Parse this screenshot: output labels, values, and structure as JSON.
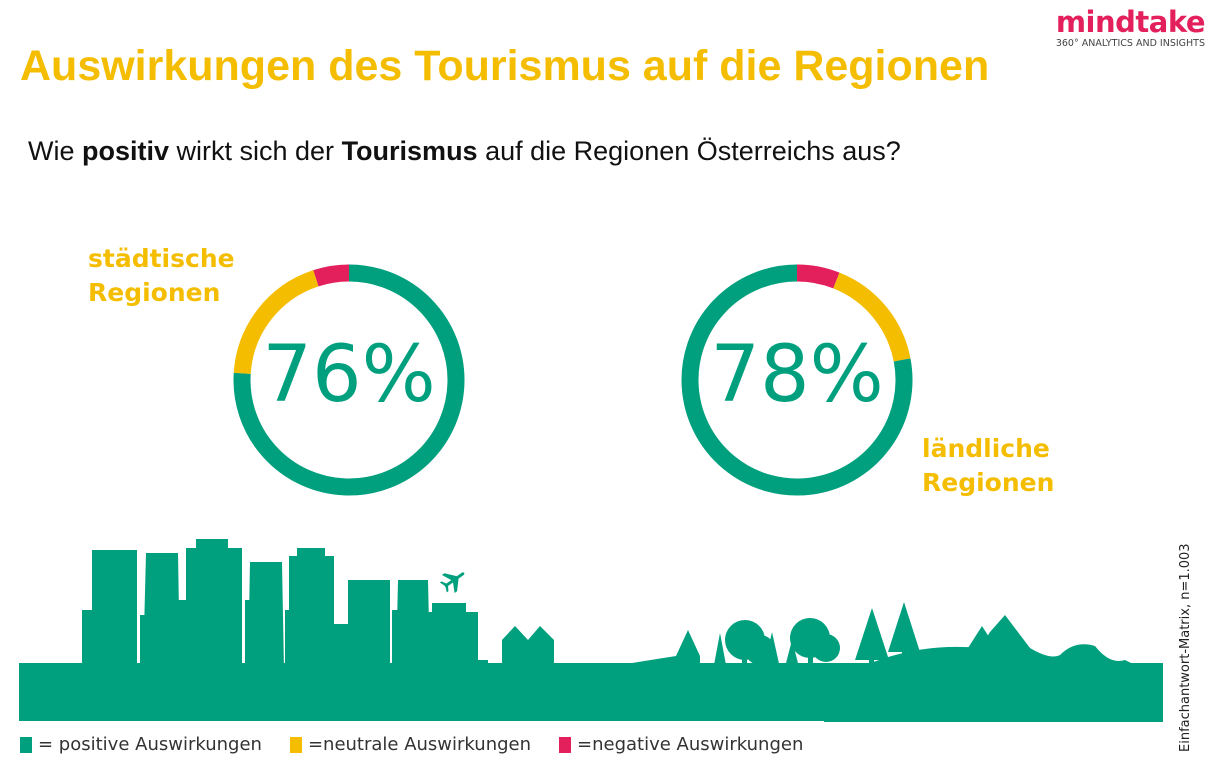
{
  "header": {
    "title": "Auswirkungen des Tourismus auf die Regionen",
    "subtitle_parts": [
      "Wie ",
      "positiv",
      " wirkt sich der ",
      "Tourismus",
      " auf die Regionen Österreichs aus?"
    ]
  },
  "logo": {
    "word": "mindtake",
    "tagline": "360° ANALYTICS AND INSIGHTS"
  },
  "colors": {
    "positive": "#00a07e",
    "neutral": "#f5bd00",
    "negative": "#e3205c",
    "title": "#f5bd00"
  },
  "chart_data": [
    {
      "type": "pie",
      "style": "donut",
      "label": "städtische Regionen",
      "label_lines": [
        "städtische",
        "Regionen"
      ],
      "center_label": "76%",
      "direction": "clockwise from top: positive, neutral, negative",
      "slices": [
        {
          "category": "positive Auswirkungen",
          "value": 76
        },
        {
          "category": "neutrale Auswirkungen",
          "value": 19
        },
        {
          "category": "negative Auswirkungen",
          "value": 5
        }
      ]
    },
    {
      "type": "pie",
      "style": "donut",
      "label": "ländliche Regionen",
      "label_lines": [
        "ländliche",
        "Regionen"
      ],
      "center_label": "78%",
      "direction": "clockwise from top: negative, neutral, positive",
      "slices": [
        {
          "category": "negative Auswirkungen",
          "value": 6
        },
        {
          "category": "neutrale Auswirkungen",
          "value": 16
        },
        {
          "category": "positive Auswirkungen",
          "value": 78
        }
      ]
    }
  ],
  "legend": [
    {
      "label": "= positive Auswirkungen",
      "color": "#00a07e"
    },
    {
      "label": "=neutrale Auswirkungen",
      "color": "#f5bd00"
    },
    {
      "label": "=negative Auswirkungen",
      "color": "#e3205c"
    }
  ],
  "note": "Einfachantwort-Matrix, n=1.003",
  "icons": [
    "airplane-icon",
    "city-skyline-illustration",
    "countryside-illustration"
  ]
}
